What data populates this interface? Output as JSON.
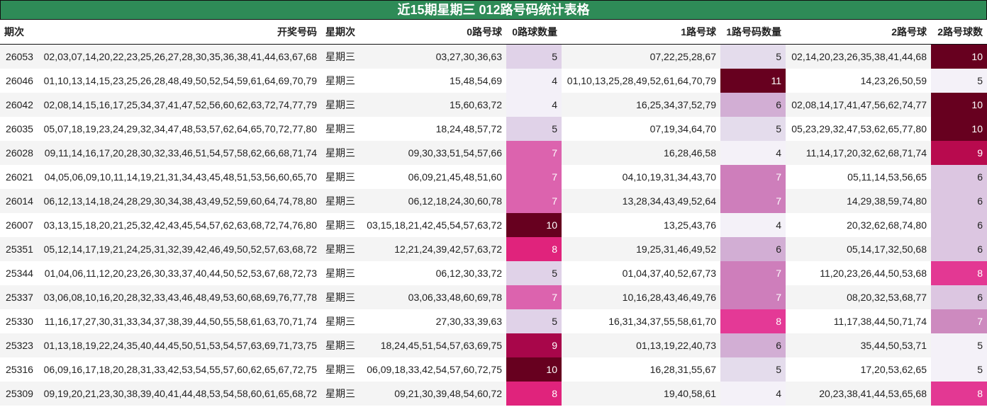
{
  "title": "近15期星期三 012路号码统计表格",
  "chart_data": {
    "type": "table",
    "title": "近15期星期三 012路号码统计表格",
    "columns": [
      "期次",
      "开奖号码",
      "星期次",
      "0路号球",
      "0路球数量",
      "1路号球",
      "1路号码数量",
      "2路号球",
      "2路号球数"
    ],
    "rows": [
      [
        "26053",
        "02,03,07,14,20,22,23,25,26,27,28,30,35,36,38,41,44,63,67,68",
        "星期三",
        "03,27,30,36,63",
        5,
        "07,22,25,28,67",
        5,
        "02,14,20,23,26,35,38,41,44,68",
        10
      ],
      [
        "26046",
        "01,10,13,14,15,23,25,26,28,48,49,50,52,54,59,61,64,69,70,79",
        "星期三",
        "15,48,54,69",
        4,
        "01,10,13,25,28,49,52,61,64,70,79",
        11,
        "14,23,26,50,59",
        5
      ],
      [
        "26042",
        "02,08,14,15,16,17,25,34,37,41,47,52,56,60,62,63,72,74,77,79",
        "星期三",
        "15,60,63,72",
        4,
        "16,25,34,37,52,79",
        6,
        "02,08,14,17,41,47,56,62,74,77",
        10
      ],
      [
        "26035",
        "05,07,18,19,23,24,29,32,34,47,48,53,57,62,64,65,70,72,77,80",
        "星期三",
        "18,24,48,57,72",
        5,
        "07,19,34,64,70",
        5,
        "05,23,29,32,47,53,62,65,77,80",
        10
      ],
      [
        "26028",
        "09,11,14,16,17,20,28,30,32,33,46,51,54,57,58,62,66,68,71,74",
        "星期三",
        "09,30,33,51,54,57,66",
        7,
        "16,28,46,58",
        4,
        "11,14,17,20,32,62,68,71,74",
        9
      ],
      [
        "26021",
        "04,05,06,09,10,11,14,19,21,31,34,43,45,48,51,53,56,60,65,70",
        "星期三",
        "06,09,21,45,48,51,60",
        7,
        "04,10,19,31,34,43,70",
        7,
        "05,11,14,53,56,65",
        6
      ],
      [
        "26014",
        "06,12,13,14,18,24,28,29,30,34,38,43,49,52,59,60,64,74,78,80",
        "星期三",
        "06,12,18,24,30,60,78",
        7,
        "13,28,34,43,49,52,64",
        7,
        "14,29,38,59,74,80",
        6
      ],
      [
        "26007",
        "03,13,15,18,20,21,25,32,42,43,45,54,57,62,63,68,72,74,76,80",
        "星期三",
        "03,15,18,21,42,45,54,57,63,72",
        10,
        "13,25,43,76",
        4,
        "20,32,62,68,74,80",
        6
      ],
      [
        "25351",
        "05,12,14,17,19,21,24,25,31,32,39,42,46,49,50,52,57,63,68,72",
        "星期三",
        "12,21,24,39,42,57,63,72",
        8,
        "19,25,31,46,49,52",
        6,
        "05,14,17,32,50,68",
        6
      ],
      [
        "25344",
        "01,04,06,11,12,20,23,26,30,33,37,40,44,50,52,53,67,68,72,73",
        "星期三",
        "06,12,30,33,72",
        5,
        "01,04,37,40,52,67,73",
        7,
        "11,20,23,26,44,50,53,68",
        8
      ],
      [
        "25337",
        "03,06,08,10,16,20,28,32,33,43,46,48,49,53,60,68,69,76,77,78",
        "星期三",
        "03,06,33,48,60,69,78",
        7,
        "10,16,28,43,46,49,76",
        7,
        "08,20,32,53,68,77",
        6
      ],
      [
        "25330",
        "11,16,17,27,30,31,33,34,37,38,39,44,50,55,58,61,63,70,71,74",
        "星期三",
        "27,30,33,39,63",
        5,
        "16,31,34,37,55,58,61,70",
        8,
        "11,17,38,44,50,71,74",
        7
      ],
      [
        "25323",
        "01,13,18,19,22,24,35,40,44,45,50,51,53,54,57,63,69,71,73,75",
        "星期三",
        "18,24,45,51,54,57,63,69,75",
        9,
        "01,13,19,22,40,73",
        6,
        "35,44,50,53,71",
        5
      ],
      [
        "25316",
        "06,09,16,17,18,20,28,31,33,42,53,54,55,57,60,62,65,67,72,75",
        "星期三",
        "06,09,18,33,42,54,57,60,72,75",
        10,
        "16,28,31,55,67",
        5,
        "17,20,53,62,65",
        5
      ],
      [
        "25309",
        "09,19,20,21,23,30,38,39,40,41,44,48,53,54,58,60,61,65,68,72",
        "星期三",
        "09,21,30,39,48,54,60,72",
        8,
        "19,40,58,61",
        4,
        "20,23,38,41,44,53,65,68",
        8
      ]
    ],
    "heat_colors": {
      "0路球数量": {
        "4": "#f3f0f8",
        "5": "#e0d2e8",
        "7": "#dc63ae",
        "8": "#e0237c",
        "9": "#a8064a",
        "10": "#67001f"
      },
      "1路号码数量": {
        "4": "#f4f1f8",
        "5": "#e4dcec",
        "6": "#d2aed4",
        "7": "#ce7ebb",
        "8": "#e43996",
        "11": "#67001f"
      },
      "2路号球数": {
        "5": "#f4f1f8",
        "6": "#dcc6e1",
        "7": "#cd8abf",
        "8": "#e33893",
        "9": "#b80a4e",
        "10": "#67001f"
      }
    },
    "header_color": "#2e8b57"
  }
}
